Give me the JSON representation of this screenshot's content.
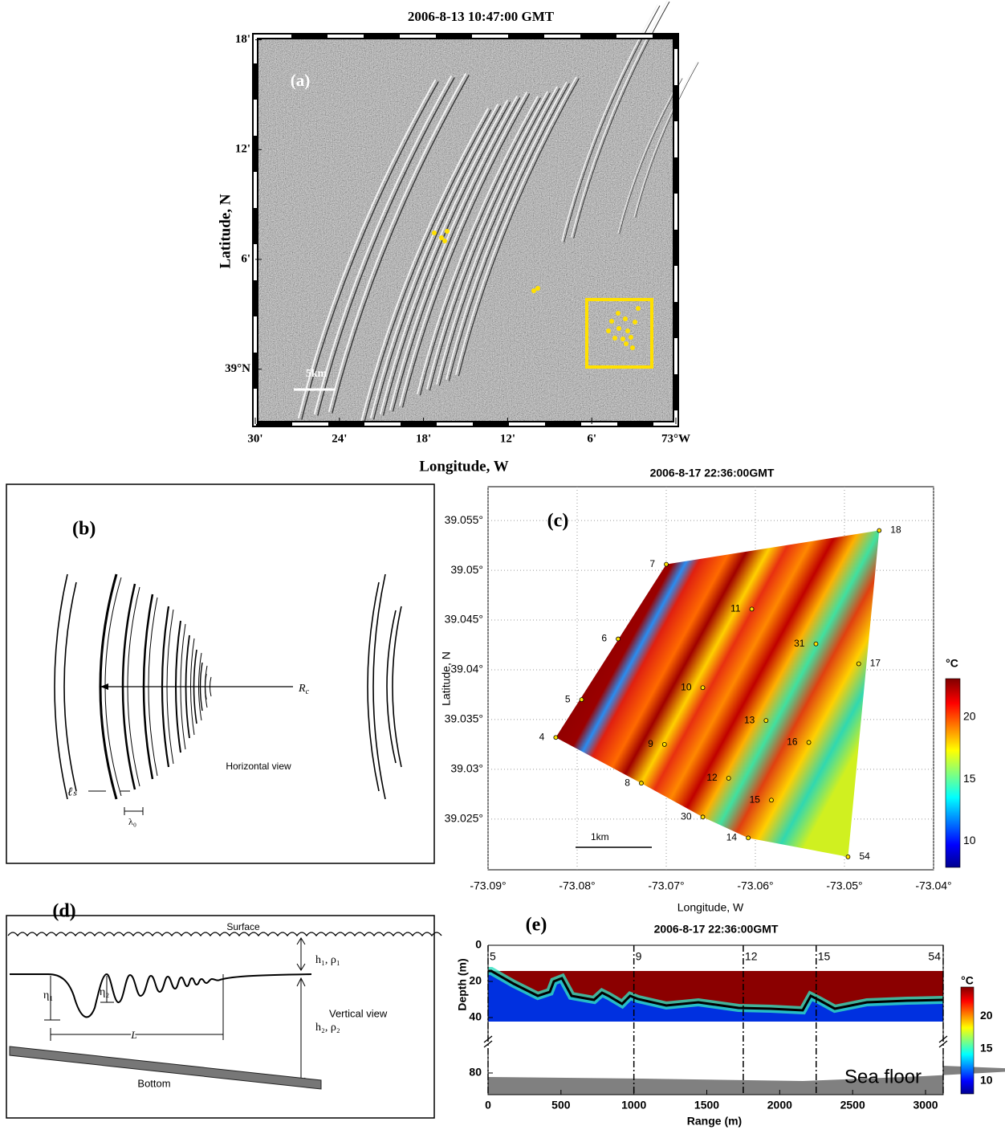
{
  "panel_a": {
    "title": "2006-8-13 10:47:00 GMT",
    "label": "(a)",
    "xlabel": "Longitude, W",
    "ylabel": "Latitude, N",
    "xlim": [
      30,
      0
    ],
    "ylim": [
      -3,
      18.2
    ],
    "xticks": [
      {
        "value": 30,
        "label": "30'"
      },
      {
        "value": 24,
        "label": "24'"
      },
      {
        "value": 18,
        "label": "18'"
      },
      {
        "value": 12,
        "label": "12'"
      },
      {
        "value": 6,
        "label": "6'"
      },
      {
        "value": 0,
        "label": "73°W"
      }
    ],
    "yticks": [
      {
        "value": 18,
        "label": "18'"
      },
      {
        "value": 12,
        "label": "12'"
      },
      {
        "value": 6,
        "label": "6'"
      },
      {
        "value": 0,
        "label": "39°N"
      }
    ],
    "scale_bar": "5km"
  },
  "panel_b": {
    "label": "(b)",
    "rc": {
      "base": "R",
      "sub": "c"
    },
    "view": "Horizontal view",
    "ls": "ℓₛ",
    "lambda": "λ₀"
  },
  "panel_c": {
    "title": "2006-8-17 22:36:00GMT",
    "label": "(c)",
    "xlabel": "Longitude, W",
    "ylabel": "Latitude, N",
    "xlim": [
      -73.09,
      -73.04
    ],
    "ylim": [
      39.0199,
      39.0584
    ],
    "xticks": [
      {
        "value": -73.09,
        "label": "-73.09°"
      },
      {
        "value": -73.08,
        "label": "-73.08°"
      },
      {
        "value": -73.07,
        "label": "-73.07°"
      },
      {
        "value": -73.06,
        "label": "-73.06°"
      },
      {
        "value": -73.05,
        "label": "-73.05°"
      },
      {
        "value": -73.04,
        "label": "-73.04°"
      }
    ],
    "yticks": [
      {
        "value": 39.025,
        "label": "39.025°"
      },
      {
        "value": 39.03,
        "label": "39.03°"
      },
      {
        "value": 39.035,
        "label": "39.035°"
      },
      {
        "value": 39.04,
        "label": "39.04°"
      },
      {
        "value": 39.045,
        "label": "39.045°"
      },
      {
        "value": 39.05,
        "label": "39.05°"
      },
      {
        "value": 39.055,
        "label": "39.055°"
      }
    ],
    "grid": true,
    "scale_bar": "1km",
    "colorbar": {
      "label": "°C",
      "clim": [
        7.9,
        23.1
      ],
      "ticks": [
        10,
        15,
        20
      ]
    },
    "stations": [
      {
        "label": "4",
        "lon": -73.0824,
        "lat": 39.0332
      },
      {
        "label": "5",
        "lon": -73.0795,
        "lat": 39.037
      },
      {
        "label": "6",
        "lon": -73.0754,
        "lat": 39.0431
      },
      {
        "label": "7",
        "lon": -73.07,
        "lat": 39.0506
      },
      {
        "label": "8",
        "lon": -73.0728,
        "lat": 39.0286
      },
      {
        "label": "9",
        "lon": -73.0702,
        "lat": 39.0325
      },
      {
        "label": "10",
        "lon": -73.0659,
        "lat": 39.0382
      },
      {
        "label": "11",
        "lon": -73.0604,
        "lat": 39.0461
      },
      {
        "label": "12",
        "lon": -73.063,
        "lat": 39.0291
      },
      {
        "label": "13",
        "lon": -73.0588,
        "lat": 39.0349
      },
      {
        "label": "14",
        "lon": -73.0608,
        "lat": 39.0231
      },
      {
        "label": "15",
        "lon": -73.0582,
        "lat": 39.0269
      },
      {
        "label": "16",
        "lon": -73.054,
        "lat": 39.0327
      },
      {
        "label": "17",
        "lon": -73.0484,
        "lat": 39.0406
      },
      {
        "label": "18",
        "lon": -73.0461,
        "lat": 39.054
      },
      {
        "label": "30",
        "lon": -73.0659,
        "lat": 39.0252
      },
      {
        "label": "31",
        "lon": -73.0532,
        "lat": 39.0426
      },
      {
        "label": "54",
        "lon": -73.0496,
        "lat": 39.0212
      }
    ]
  },
  "panel_d": {
    "label": "(d)",
    "surface": "Surface",
    "upper_layer": "h₁, ρ₁",
    "view": "Vertical view",
    "eta1": "η₁",
    "eta2": "η₂",
    "length": "L",
    "lower_layer": "h₂, ρ₂",
    "bottom": "Bottom"
  },
  "panel_e": {
    "title": "2006-8-17 22:36:00GMT",
    "label": "(e)",
    "xlabel": "Range (m)",
    "ylabel": "Depth (m)",
    "xlim": [
      0,
      3121
    ],
    "ylim": [
      0,
      92
    ],
    "ybreak": [
      48,
      64
    ],
    "xticks": [
      0,
      500,
      1000,
      1500,
      2000,
      2500,
      3000
    ],
    "yticks": [
      0,
      20,
      40,
      80
    ],
    "stations": [
      {
        "label": "5",
        "range": 0
      },
      {
        "label": "9",
        "range": 1000
      },
      {
        "label": "12",
        "range": 1750
      },
      {
        "label": "15",
        "range": 2250
      },
      {
        "label": "54",
        "range": 3121
      }
    ],
    "floor_label": "Sea floor",
    "colorbar": {
      "label": "°C",
      "clim": [
        8,
        24.5
      ],
      "ticks": [
        10,
        15,
        20
      ]
    }
  }
}
